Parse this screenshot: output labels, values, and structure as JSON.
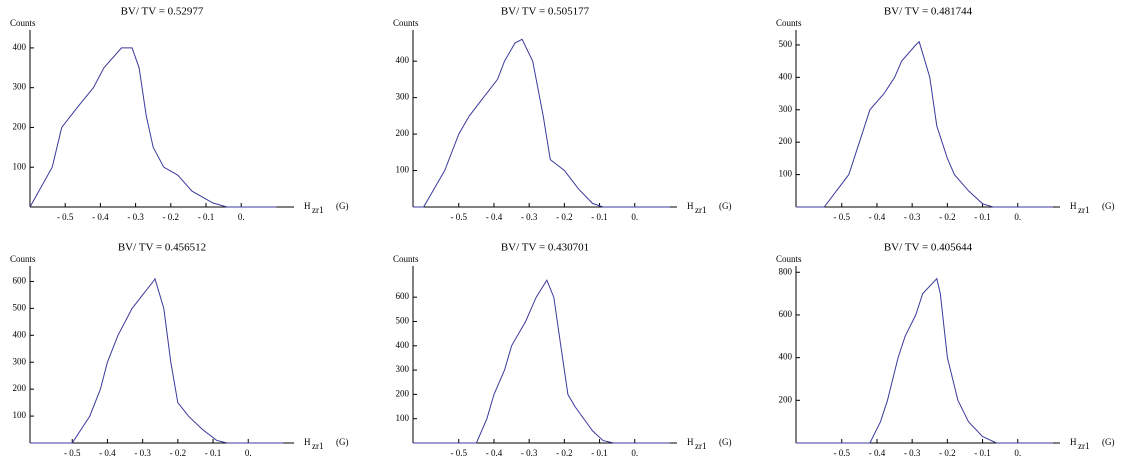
{
  "chart_data": [
    {
      "type": "line",
      "title": "BV/ TV   =  0.52977",
      "ylabel": "Counts",
      "xlabel": "H",
      "xlabel_sub": "zr1",
      "xlabel_unit": "(G)",
      "color": "#3a3a9c",
      "xlim": [
        -0.6,
        0.15
      ],
      "ylim": [
        0,
        440
      ],
      "xticks": [
        {
          "value": -0.5,
          "label": "- 0.5"
        },
        {
          "value": -0.4,
          "label": "- 0.4"
        },
        {
          "value": -0.3,
          "label": "- 0.3"
        },
        {
          "value": -0.2,
          "label": "- 0.2"
        },
        {
          "value": -0.1,
          "label": "- 0.1"
        },
        {
          "value": 0,
          "label": "0."
        }
      ],
      "yticks": [
        100,
        200,
        300,
        400
      ],
      "x": [
        -0.6,
        -0.537,
        -0.51,
        -0.466,
        -0.42,
        -0.39,
        -0.34,
        -0.31,
        -0.29,
        -0.27,
        -0.25,
        -0.22,
        -0.18,
        -0.14,
        -0.08,
        -0.04,
        0.1
      ],
      "values": [
        0,
        100,
        200,
        250,
        300,
        350,
        400,
        400,
        350,
        230,
        150,
        100,
        80,
        40,
        10,
        0,
        0
      ]
    },
    {
      "type": "line",
      "title": "BV/ TV   =  0.505177",
      "ylabel": "Counts",
      "xlabel": "H",
      "xlabel_sub": "zr1",
      "xlabel_unit": "(G)",
      "color": "#3a3a9c",
      "xlim": [
        -0.63,
        0.12
      ],
      "ylim": [
        0,
        480
      ],
      "xticks": [
        {
          "value": -0.5,
          "label": "- 0.5"
        },
        {
          "value": -0.4,
          "label": "- 0.4"
        },
        {
          "value": -0.3,
          "label": "- 0.3"
        },
        {
          "value": -0.2,
          "label": "- 0.2"
        },
        {
          "value": -0.1,
          "label": "- 0.1"
        },
        {
          "value": 0,
          "label": "0."
        }
      ],
      "yticks": [
        100,
        200,
        300,
        400
      ],
      "x": [
        -0.63,
        -0.6,
        -0.54,
        -0.5,
        -0.47,
        -0.43,
        -0.39,
        -0.37,
        -0.34,
        -0.32,
        -0.29,
        -0.26,
        -0.24,
        -0.2,
        -0.16,
        -0.12,
        -0.09,
        0.1
      ],
      "values": [
        0,
        0,
        100,
        200,
        250,
        300,
        350,
        400,
        450,
        460,
        400,
        250,
        130,
        100,
        50,
        10,
        0,
        0
      ]
    },
    {
      "type": "line",
      "title": "BV/ TV   =  0.481744",
      "ylabel": "Counts",
      "xlabel": "H",
      "xlabel_sub": "zr1",
      "xlabel_unit": "(G)",
      "color": "#3a3a9c",
      "xlim": [
        -0.63,
        0.12
      ],
      "ylim": [
        0,
        540
      ],
      "xticks": [
        {
          "value": -0.5,
          "label": "- 0.5"
        },
        {
          "value": -0.4,
          "label": "- 0.4"
        },
        {
          "value": -0.3,
          "label": "- 0.3"
        },
        {
          "value": -0.2,
          "label": "- 0.2"
        },
        {
          "value": -0.1,
          "label": "- 0.1"
        },
        {
          "value": 0,
          "label": "0."
        }
      ],
      "yticks": [
        100,
        200,
        300,
        400,
        500
      ],
      "x": [
        -0.63,
        -0.55,
        -0.48,
        -0.45,
        -0.42,
        -0.38,
        -0.35,
        -0.33,
        -0.29,
        -0.28,
        -0.25,
        -0.23,
        -0.2,
        -0.18,
        -0.14,
        -0.1,
        -0.07,
        0.1
      ],
      "values": [
        0,
        0,
        100,
        200,
        300,
        350,
        400,
        450,
        500,
        510,
        400,
        250,
        150,
        100,
        50,
        10,
        0,
        0
      ]
    },
    {
      "type": "line",
      "title": "BV/ TV   =  0.456512",
      "ylabel": "Counts",
      "xlabel": "H",
      "xlabel_sub": "zr1",
      "xlabel_unit": "(G)",
      "color": "#3a3a9c",
      "xlim": [
        -0.62,
        0.13
      ],
      "ylim": [
        0,
        650
      ],
      "xticks": [
        {
          "value": -0.5,
          "label": "- 0.5"
        },
        {
          "value": -0.4,
          "label": "- 0.4"
        },
        {
          "value": -0.3,
          "label": "- 0.3"
        },
        {
          "value": -0.2,
          "label": "- 0.2"
        },
        {
          "value": -0.1,
          "label": "- 0.1"
        },
        {
          "value": 0,
          "label": "0."
        }
      ],
      "yticks": [
        100,
        200,
        300,
        400,
        500,
        600
      ],
      "x": [
        -0.62,
        -0.5,
        -0.45,
        -0.42,
        -0.4,
        -0.37,
        -0.33,
        -0.3,
        -0.27,
        -0.265,
        -0.24,
        -0.22,
        -0.2,
        -0.17,
        -0.13,
        -0.09,
        -0.06,
        0.1
      ],
      "values": [
        0,
        0,
        100,
        200,
        300,
        400,
        500,
        550,
        600,
        610,
        500,
        300,
        150,
        100,
        50,
        10,
        0,
        0
      ]
    },
    {
      "type": "line",
      "title": "BV/ TV   =  0.430701",
      "ylabel": "Counts",
      "xlabel": "H",
      "xlabel_sub": "zr1",
      "xlabel_unit": "(G)",
      "color": "#3a3a9c",
      "xlim": [
        -0.63,
        0.12
      ],
      "ylim": [
        0,
        720
      ],
      "xticks": [
        {
          "value": -0.5,
          "label": "- 0.5"
        },
        {
          "value": -0.4,
          "label": "- 0.4"
        },
        {
          "value": -0.3,
          "label": "- 0.3"
        },
        {
          "value": -0.2,
          "label": "- 0.2"
        },
        {
          "value": -0.1,
          "label": "- 0.1"
        },
        {
          "value": 0,
          "label": "0."
        }
      ],
      "yticks": [
        100,
        200,
        300,
        400,
        500,
        600
      ],
      "x": [
        -0.63,
        -0.45,
        -0.42,
        -0.4,
        -0.37,
        -0.35,
        -0.31,
        -0.28,
        -0.25,
        -0.23,
        -0.21,
        -0.19,
        -0.17,
        -0.12,
        -0.09,
        -0.06,
        0.1
      ],
      "values": [
        0,
        0,
        100,
        200,
        300,
        400,
        500,
        600,
        670,
        600,
        400,
        200,
        150,
        50,
        10,
        0,
        0
      ]
    },
    {
      "type": "line",
      "title": "BV/ TV   =  0.405644",
      "ylabel": "Counts",
      "xlabel": "H",
      "xlabel_sub": "zr1",
      "xlabel_unit": "(G)",
      "color": "#3a3a9c",
      "xlim": [
        -0.63,
        0.12
      ],
      "ylim": [
        0,
        820
      ],
      "xticks": [
        {
          "value": -0.5,
          "label": "- 0.5"
        },
        {
          "value": -0.4,
          "label": "- 0.4"
        },
        {
          "value": -0.3,
          "label": "- 0.3"
        },
        {
          "value": -0.2,
          "label": "- 0.2"
        },
        {
          "value": -0.1,
          "label": "- 0.1"
        },
        {
          "value": 0,
          "label": "0."
        }
      ],
      "yticks": [
        200,
        400,
        600,
        800
      ],
      "x": [
        -0.63,
        -0.42,
        -0.39,
        -0.37,
        -0.34,
        -0.32,
        -0.29,
        -0.27,
        -0.23,
        -0.22,
        -0.2,
        -0.17,
        -0.14,
        -0.1,
        -0.06,
        0.1
      ],
      "values": [
        0,
        0,
        100,
        200,
        400,
        500,
        600,
        700,
        770,
        700,
        400,
        200,
        100,
        30,
        0,
        0
      ]
    }
  ]
}
